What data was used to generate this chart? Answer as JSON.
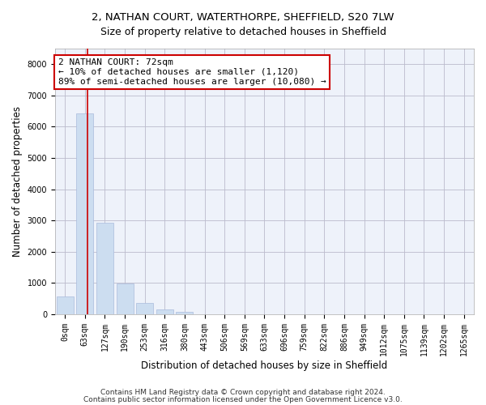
{
  "title_line1": "2, NATHAN COURT, WATERTHORPE, SHEFFIELD, S20 7LW",
  "title_line2": "Size of property relative to detached houses in Sheffield",
  "xlabel": "Distribution of detached houses by size in Sheffield",
  "ylabel": "Number of detached properties",
  "bar_values": [
    560,
    6420,
    2920,
    980,
    360,
    165,
    90,
    0,
    0,
    0,
    0,
    0,
    0,
    0,
    0,
    0,
    0,
    0,
    0,
    0,
    0
  ],
  "bar_labels": [
    "0sqm",
    "63sqm",
    "127sqm",
    "190sqm",
    "253sqm",
    "316sqm",
    "380sqm",
    "443sqm",
    "506sqm",
    "569sqm",
    "633sqm",
    "696sqm",
    "759sqm",
    "822sqm",
    "886sqm",
    "949sqm",
    "1012sqm",
    "1075sqm",
    "1139sqm",
    "1202sqm",
    "1265sqm"
  ],
  "bar_color": "#ccddf0",
  "bar_edge_color": "#aabbdd",
  "vline_color": "#cc0000",
  "vline_x": 1.14,
  "annotation_text": "2 NATHAN COURT: 72sqm\n← 10% of detached houses are smaller (1,120)\n89% of semi-detached houses are larger (10,080) →",
  "annotation_box_color": "#ffffff",
  "annotation_box_edge": "#cc0000",
  "ylim": [
    0,
    8500
  ],
  "yticks": [
    0,
    1000,
    2000,
    3000,
    4000,
    5000,
    6000,
    7000,
    8000
  ],
  "footer_line1": "Contains HM Land Registry data © Crown copyright and database right 2024.",
  "footer_line2": "Contains public sector information licensed under the Open Government Licence v3.0.",
  "background_color": "#eef2fa",
  "grid_color": "#bbbbcc",
  "title_fontsize": 9.5,
  "subtitle_fontsize": 9,
  "axis_label_fontsize": 8.5,
  "tick_fontsize": 7,
  "footer_fontsize": 6.5,
  "annotation_fontsize": 8
}
